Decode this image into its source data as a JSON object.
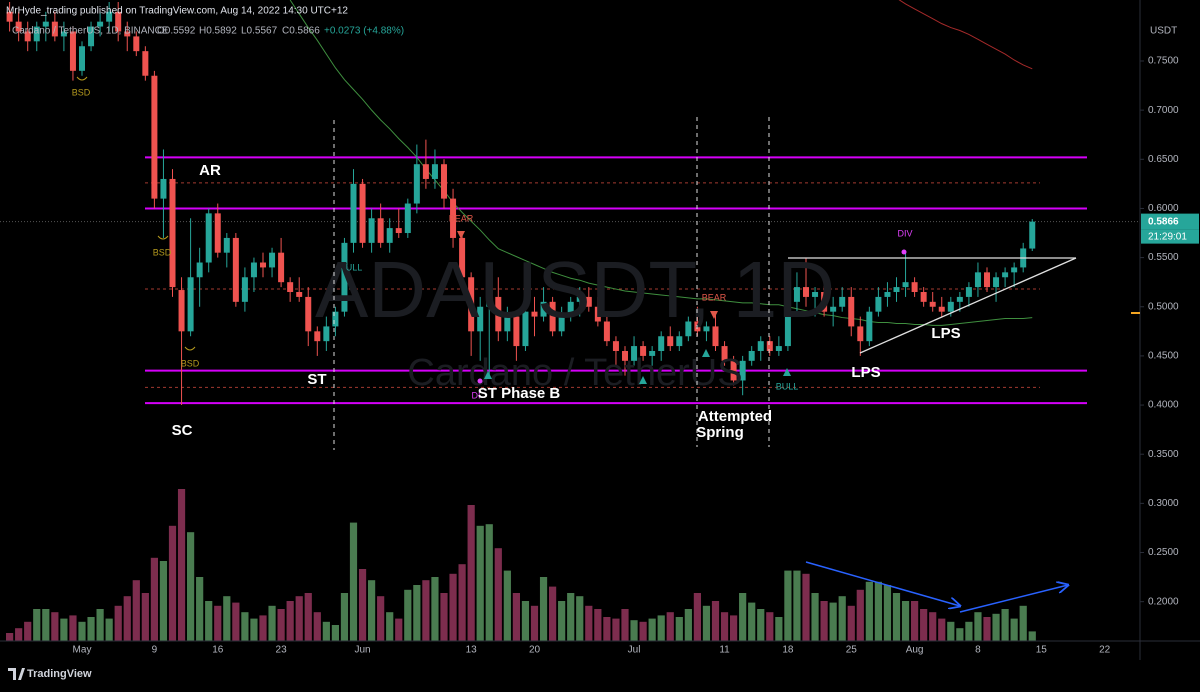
{
  "header": {
    "publisher": "MrHyde_trading published on TradingView.com, Aug 14, 2022 14:30 UTC+12",
    "footer": "TradingView"
  },
  "chart_data": {
    "type": "candlestick",
    "symbol": "Cardano / TetherUS, 1D, BINANCE",
    "ohlc_legend": [
      "O0.5592",
      "H0.5892",
      "L0.5567",
      "C0.5866",
      "+0.0273 (+4.88%)"
    ],
    "watermark": [
      "ADAUSDT, 1D",
      "Cardano / TetherUS"
    ],
    "y_unit": "USDT",
    "last_price": {
      "value": 0.5866,
      "label": "0.5866"
    },
    "countdown": "21:29:01",
    "categories": [
      null,
      null,
      null,
      null,
      null,
      null,
      null,
      null,
      "May",
      null,
      null,
      null,
      null,
      null,
      null,
      null,
      "9",
      null,
      null,
      null,
      null,
      null,
      null,
      "16",
      null,
      null,
      null,
      null,
      null,
      null,
      "23",
      null,
      null,
      null,
      null,
      null,
      null,
      null,
      null,
      "Jun",
      null,
      null,
      null,
      null,
      null,
      null,
      null,
      null,
      null,
      null,
      null,
      "13",
      null,
      null,
      null,
      null,
      null,
      null,
      "20",
      null,
      null,
      null,
      null,
      null,
      null,
      null,
      null,
      null,
      null,
      "Jul",
      null,
      null,
      null,
      null,
      null,
      null,
      null,
      null,
      null,
      "11",
      null,
      null,
      null,
      null,
      null,
      null,
      "18",
      null,
      null,
      null,
      null,
      null,
      null,
      "25",
      null,
      null,
      null,
      null,
      null,
      null,
      "Aug",
      null,
      null,
      null,
      null,
      null,
      null,
      "8",
      null,
      null,
      null,
      null,
      null,
      null,
      "15",
      null,
      null,
      null,
      null,
      null,
      null,
      "22",
      null,
      null
    ],
    "open": [
      0.8,
      0.79,
      0.78,
      0.77,
      0.785,
      0.79,
      0.775,
      0.78,
      0.74,
      0.765,
      0.785,
      0.79,
      0.8,
      0.78,
      0.775,
      0.76,
      0.735,
      0.61,
      0.63,
      0.517,
      0.475,
      0.53,
      0.545,
      0.595,
      0.555,
      0.57,
      0.505,
      0.53,
      0.545,
      0.54,
      0.555,
      0.525,
      0.515,
      0.51,
      0.475,
      0.465,
      0.48,
      0.495,
      0.565,
      0.625,
      0.565,
      0.59,
      0.565,
      0.58,
      0.575,
      0.605,
      0.645,
      0.63,
      0.645,
      0.61,
      0.57,
      0.53,
      0.475,
      0.5,
      0.51,
      0.475,
      0.49,
      0.46,
      0.495,
      0.49,
      0.505,
      0.475,
      0.49,
      0.505,
      0.51,
      0.5,
      0.485,
      0.465,
      0.455,
      0.445,
      0.46,
      0.45,
      0.455,
      0.47,
      0.46,
      0.47,
      0.485,
      0.475,
      0.48,
      0.46,
      0.445,
      0.425,
      0.445,
      0.455,
      0.465,
      0.455,
      0.46,
      0.505,
      0.52,
      0.51,
      0.515,
      0.495,
      0.5,
      0.51,
      0.48,
      0.465,
      0.495,
      0.51,
      0.515,
      0.52,
      0.525,
      0.515,
      0.505,
      0.5,
      0.495,
      0.505,
      0.51,
      0.52,
      0.535,
      0.52,
      0.53,
      0.535,
      0.54,
      0.5592,
      null,
      null,
      null,
      null,
      null,
      null,
      null,
      null,
      null,
      null
    ],
    "high": [
      0.81,
      0.8,
      0.79,
      0.79,
      0.8,
      0.8,
      0.79,
      0.785,
      0.77,
      0.79,
      0.8,
      0.81,
      0.81,
      0.79,
      0.78,
      0.765,
      0.74,
      0.66,
      0.64,
      0.53,
      0.59,
      0.56,
      0.6,
      0.605,
      0.575,
      0.575,
      0.54,
      0.55,
      0.555,
      0.56,
      0.57,
      0.53,
      0.53,
      0.52,
      0.48,
      0.49,
      0.5,
      0.57,
      0.64,
      0.63,
      0.6,
      0.605,
      0.59,
      0.6,
      0.61,
      0.665,
      0.67,
      0.66,
      0.65,
      0.62,
      0.575,
      0.535,
      0.51,
      0.53,
      0.53,
      0.5,
      0.495,
      0.5,
      0.51,
      0.52,
      0.51,
      0.5,
      0.51,
      0.52,
      0.52,
      0.51,
      0.49,
      0.47,
      0.46,
      0.47,
      0.465,
      0.46,
      0.475,
      0.48,
      0.475,
      0.49,
      0.5,
      0.485,
      0.495,
      0.465,
      0.45,
      0.45,
      0.46,
      0.47,
      0.47,
      0.47,
      0.51,
      0.535,
      0.55,
      0.52,
      0.53,
      0.51,
      0.52,
      0.52,
      0.49,
      0.5,
      0.52,
      0.525,
      0.53,
      0.555,
      0.53,
      0.52,
      0.515,
      0.51,
      0.51,
      0.515,
      0.525,
      0.545,
      0.54,
      0.535,
      0.54,
      0.545,
      0.565,
      0.5892,
      null,
      null,
      null,
      null,
      null,
      null,
      null,
      null,
      null,
      null
    ],
    "low": [
      0.78,
      0.77,
      0.76,
      0.76,
      0.77,
      0.77,
      0.76,
      0.73,
      0.735,
      0.76,
      0.775,
      0.78,
      0.77,
      0.76,
      0.755,
      0.73,
      0.6,
      0.57,
      0.51,
      0.4,
      0.47,
      0.5,
      0.535,
      0.55,
      0.54,
      0.5,
      0.495,
      0.515,
      0.53,
      0.53,
      0.52,
      0.505,
      0.505,
      0.46,
      0.45,
      0.455,
      0.47,
      0.49,
      0.555,
      0.56,
      0.555,
      0.56,
      0.555,
      0.57,
      0.57,
      0.595,
      0.62,
      0.62,
      0.6,
      0.56,
      0.52,
      0.45,
      0.445,
      0.43,
      0.465,
      0.465,
      0.445,
      0.455,
      0.47,
      0.485,
      0.47,
      0.47,
      0.485,
      0.49,
      0.495,
      0.48,
      0.46,
      0.44,
      0.43,
      0.44,
      0.445,
      0.44,
      0.445,
      0.455,
      0.455,
      0.465,
      0.47,
      0.465,
      0.455,
      0.44,
      0.42,
      0.41,
      0.44,
      0.445,
      0.45,
      0.45,
      0.455,
      0.495,
      0.5,
      0.49,
      0.49,
      0.48,
      0.495,
      0.47,
      0.45,
      0.46,
      0.49,
      0.5,
      0.505,
      0.51,
      0.51,
      0.5,
      0.495,
      0.49,
      0.49,
      0.495,
      0.5,
      0.51,
      0.515,
      0.505,
      0.52,
      0.52,
      0.535,
      0.5567,
      null,
      null,
      null,
      null,
      null,
      null,
      null,
      null,
      null,
      null
    ],
    "close": [
      0.79,
      0.78,
      0.77,
      0.785,
      0.79,
      0.775,
      0.78,
      0.74,
      0.765,
      0.785,
      0.79,
      0.8,
      0.78,
      0.775,
      0.76,
      0.735,
      0.61,
      0.63,
      0.52,
      0.475,
      0.53,
      0.545,
      0.595,
      0.555,
      0.57,
      0.505,
      0.53,
      0.545,
      0.54,
      0.555,
      0.525,
      0.515,
      0.51,
      0.475,
      0.465,
      0.48,
      0.495,
      0.565,
      0.625,
      0.565,
      0.59,
      0.565,
      0.58,
      0.575,
      0.605,
      0.645,
      0.63,
      0.645,
      0.61,
      0.57,
      0.53,
      0.475,
      0.5,
      0.51,
      0.475,
      0.49,
      0.46,
      0.495,
      0.49,
      0.505,
      0.475,
      0.49,
      0.505,
      0.51,
      0.5,
      0.485,
      0.465,
      0.455,
      0.445,
      0.46,
      0.45,
      0.455,
      0.47,
      0.46,
      0.47,
      0.485,
      0.475,
      0.48,
      0.46,
      0.445,
      0.425,
      0.445,
      0.455,
      0.465,
      0.455,
      0.46,
      0.505,
      0.52,
      0.51,
      0.515,
      0.495,
      0.5,
      0.51,
      0.48,
      0.465,
      0.495,
      0.51,
      0.515,
      0.52,
      0.525,
      0.515,
      0.505,
      0.5,
      0.495,
      0.505,
      0.51,
      0.52,
      0.535,
      0.52,
      0.53,
      0.535,
      0.54,
      0.5593,
      0.5866,
      null,
      null,
      null,
      null,
      null,
      null,
      null,
      null,
      null,
      null
    ],
    "up_color": "#26a69a",
    "down_color": "#ef5350",
    "volume": {
      "up_color": "#4a7c50",
      "down_color": "#7d2d4e",
      "values": [
        5,
        8,
        12,
        20,
        20,
        18,
        14,
        16,
        12,
        15,
        20,
        14,
        22,
        28,
        38,
        30,
        52,
        50,
        72,
        95,
        68,
        40,
        25,
        22,
        28,
        24,
        18,
        14,
        16,
        22,
        20,
        25,
        28,
        30,
        18,
        12,
        10,
        30,
        74,
        45,
        38,
        28,
        18,
        14,
        32,
        35,
        38,
        40,
        30,
        42,
        48,
        85,
        72,
        73,
        58,
        44,
        30,
        25,
        22,
        40,
        34,
        25,
        30,
        28,
        22,
        20,
        15,
        14,
        20,
        13,
        12,
        14,
        16,
        18,
        15,
        20,
        30,
        22,
        25,
        18,
        16,
        30,
        24,
        20,
        18,
        15,
        44,
        44,
        42,
        30,
        25,
        24,
        28,
        22,
        32,
        37,
        37,
        35,
        30,
        25,
        25,
        20,
        18,
        14,
        12,
        8,
        12,
        18,
        15,
        17,
        20,
        14,
        22,
        6,
        null,
        null,
        null,
        null,
        null,
        null,
        null,
        null,
        null,
        null
      ]
    },
    "y2lim": [
      0,
      100
    ],
    "ylim": [
      0.16,
      0.81
    ],
    "yticks": [
      {
        "value": 0.35,
        "label": "0.3500"
      },
      {
        "value": 0.4,
        "label": "0.4000"
      },
      {
        "value": 0.45,
        "label": "0.4500"
      },
      {
        "value": 0.5,
        "label": "0.5000"
      },
      {
        "value": 0.55,
        "label": "0.5500"
      },
      {
        "value": 0.6,
        "label": "0.6000"
      },
      {
        "value": 0.65,
        "label": "0.6500"
      },
      {
        "value": 0.7,
        "label": "0.7000"
      },
      {
        "value": 0.75,
        "label": "0.7500"
      },
      {
        "value": 0.2,
        "label": "0.2000"
      },
      {
        "value": 0.25,
        "label": "0.2500"
      },
      {
        "value": 0.3,
        "label": "0.3000"
      }
    ],
    "moving_averages": [
      {
        "color": "#3f8f3f",
        "values": [
          null,
          null,
          null,
          null,
          null,
          null,
          null,
          null,
          null,
          null,
          null,
          null,
          null,
          null,
          null,
          null,
          null,
          null,
          null,
          null,
          null,
          null,
          null,
          null,
          null,
          null,
          null,
          null,
          null,
          null,
          null,
          0.812,
          0.798,
          0.784,
          0.771,
          0.757,
          0.743,
          0.731,
          0.721,
          0.711,
          0.7,
          0.69,
          0.681,
          0.671,
          0.662,
          0.652,
          0.64,
          0.629,
          0.618,
          0.606,
          0.596,
          0.587,
          0.578,
          0.568,
          0.559,
          0.555,
          0.551,
          0.547,
          0.543,
          0.539,
          0.535,
          0.532,
          0.529,
          0.527,
          0.524,
          0.522,
          0.52,
          0.518,
          0.516,
          0.515,
          0.514,
          0.513,
          0.512,
          0.511,
          0.51,
          0.509,
          0.508,
          0.508,
          0.507,
          0.506,
          0.505,
          0.504,
          0.504,
          0.503,
          0.502,
          0.502,
          0.5,
          0.498,
          0.496,
          0.494,
          0.492,
          0.491,
          0.489,
          0.488,
          0.487,
          0.485,
          0.484,
          0.484,
          0.483,
          0.483,
          0.482,
          0.482,
          0.481,
          0.481,
          0.482,
          0.483,
          0.484,
          0.485,
          0.486,
          0.487,
          0.488,
          0.488,
          0.488,
          0.489,
          null,
          null,
          null,
          null,
          null,
          null,
          null,
          null,
          null,
          null
        ]
      },
      {
        "color": "#a52a2a",
        "values": [
          null,
          null,
          null,
          null,
          null,
          null,
          null,
          null,
          null,
          null,
          null,
          null,
          null,
          null,
          null,
          null,
          null,
          null,
          null,
          null,
          null,
          null,
          null,
          null,
          null,
          null,
          null,
          null,
          null,
          null,
          null,
          null,
          null,
          null,
          null,
          null,
          null,
          null,
          null,
          null,
          null,
          null,
          null,
          null,
          null,
          null,
          null,
          null,
          null,
          null,
          null,
          null,
          null,
          null,
          null,
          null,
          null,
          null,
          null,
          null,
          null,
          null,
          null,
          null,
          null,
          null,
          null,
          null,
          null,
          null,
          null,
          null,
          null,
          null,
          null,
          null,
          null,
          null,
          null,
          null,
          null,
          null,
          null,
          null,
          null,
          null,
          null,
          null,
          null,
          null,
          null,
          null,
          null,
          null,
          null,
          null,
          null,
          null,
          0.814,
          0.808,
          0.803,
          0.798,
          0.793,
          0.788,
          0.784,
          0.781,
          0.777,
          0.772,
          0.767,
          0.762,
          0.757,
          0.751,
          0.746,
          0.742,
          null,
          null,
          null,
          null,
          null,
          null,
          null,
          null,
          null,
          null
        ]
      }
    ],
    "levels": [
      {
        "value": 0.652,
        "color": "#d500f9"
      },
      {
        "value": 0.6,
        "color": "#d500f9"
      },
      {
        "value": 0.435,
        "color": "#d500f9"
      },
      {
        "value": 0.402,
        "color": "#d500f9"
      }
    ],
    "dashed_levels": [
      {
        "value": 0.626,
        "color": "#a33a30"
      },
      {
        "value": 0.518,
        "color": "#a33a30"
      },
      {
        "value": 0.418,
        "color": "#a33a30"
      }
    ],
    "annotations": [
      "AR",
      "ST",
      "SC",
      "ST Phase B",
      "Attempted",
      "Spring",
      "LPS",
      "LPS"
    ],
    "signals": [
      "BSD",
      "BSD",
      "BSD",
      "BEAR",
      "BEAR",
      "BULL",
      "ULL",
      "DIV",
      "DI"
    ]
  }
}
